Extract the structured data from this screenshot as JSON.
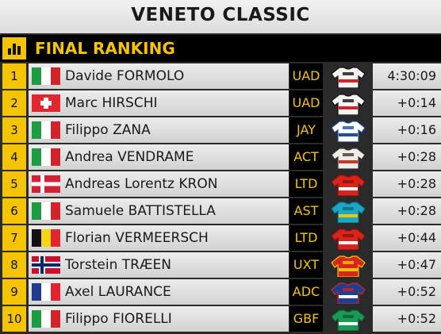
{
  "title": "VENETO CLASSIC",
  "header": {
    "label": "FINAL RANKING",
    "icon": "bar-chart-icon"
  },
  "colors": {
    "accent": "#f5c400",
    "row_bg": "#e0e0e0",
    "team_bg": "#000000"
  },
  "rows": [
    {
      "pos": "1",
      "flag": "italy",
      "rider": "Davide FORMOLO",
      "team": "UAD",
      "time": "4:30:09",
      "jersey": "uae"
    },
    {
      "pos": "2",
      "flag": "switzerland",
      "rider": "Marc HIRSCHI",
      "team": "UAD",
      "time": "+0:14",
      "jersey": "uae"
    },
    {
      "pos": "3",
      "flag": "italy",
      "rider": "Filippo ZANA",
      "team": "JAY",
      "time": "+0:16",
      "jersey": "jayco"
    },
    {
      "pos": "4",
      "flag": "italy",
      "rider": "Andrea VENDRAME",
      "team": "ACT",
      "time": "+0:28",
      "jersey": "decathlon"
    },
    {
      "pos": "5",
      "flag": "denmark",
      "rider": "Andreas Lorentz KRON",
      "team": "LTD",
      "time": "+0:28",
      "jersey": "lotto"
    },
    {
      "pos": "6",
      "flag": "italy",
      "rider": "Samuele BATTISTELLA",
      "team": "AST",
      "time": "+0:28",
      "jersey": "astana"
    },
    {
      "pos": "7",
      "flag": "belgium",
      "rider": "Florian VERMEERSCH",
      "team": "LTD",
      "time": "+0:44",
      "jersey": "lotto"
    },
    {
      "pos": "8",
      "flag": "norway",
      "rider": "Torstein TRÆEN",
      "team": "UXT",
      "time": "+0:47",
      "jersey": "uno-x"
    },
    {
      "pos": "9",
      "flag": "france",
      "rider": "Axel LAURANCE",
      "team": "ADC",
      "time": "+0:52",
      "jersey": "alpecin"
    },
    {
      "pos": "10",
      "flag": "italy",
      "rider": "Filippo FIORELLI",
      "team": "GBF",
      "time": "+0:52",
      "jersey": "bardiani"
    }
  ]
}
